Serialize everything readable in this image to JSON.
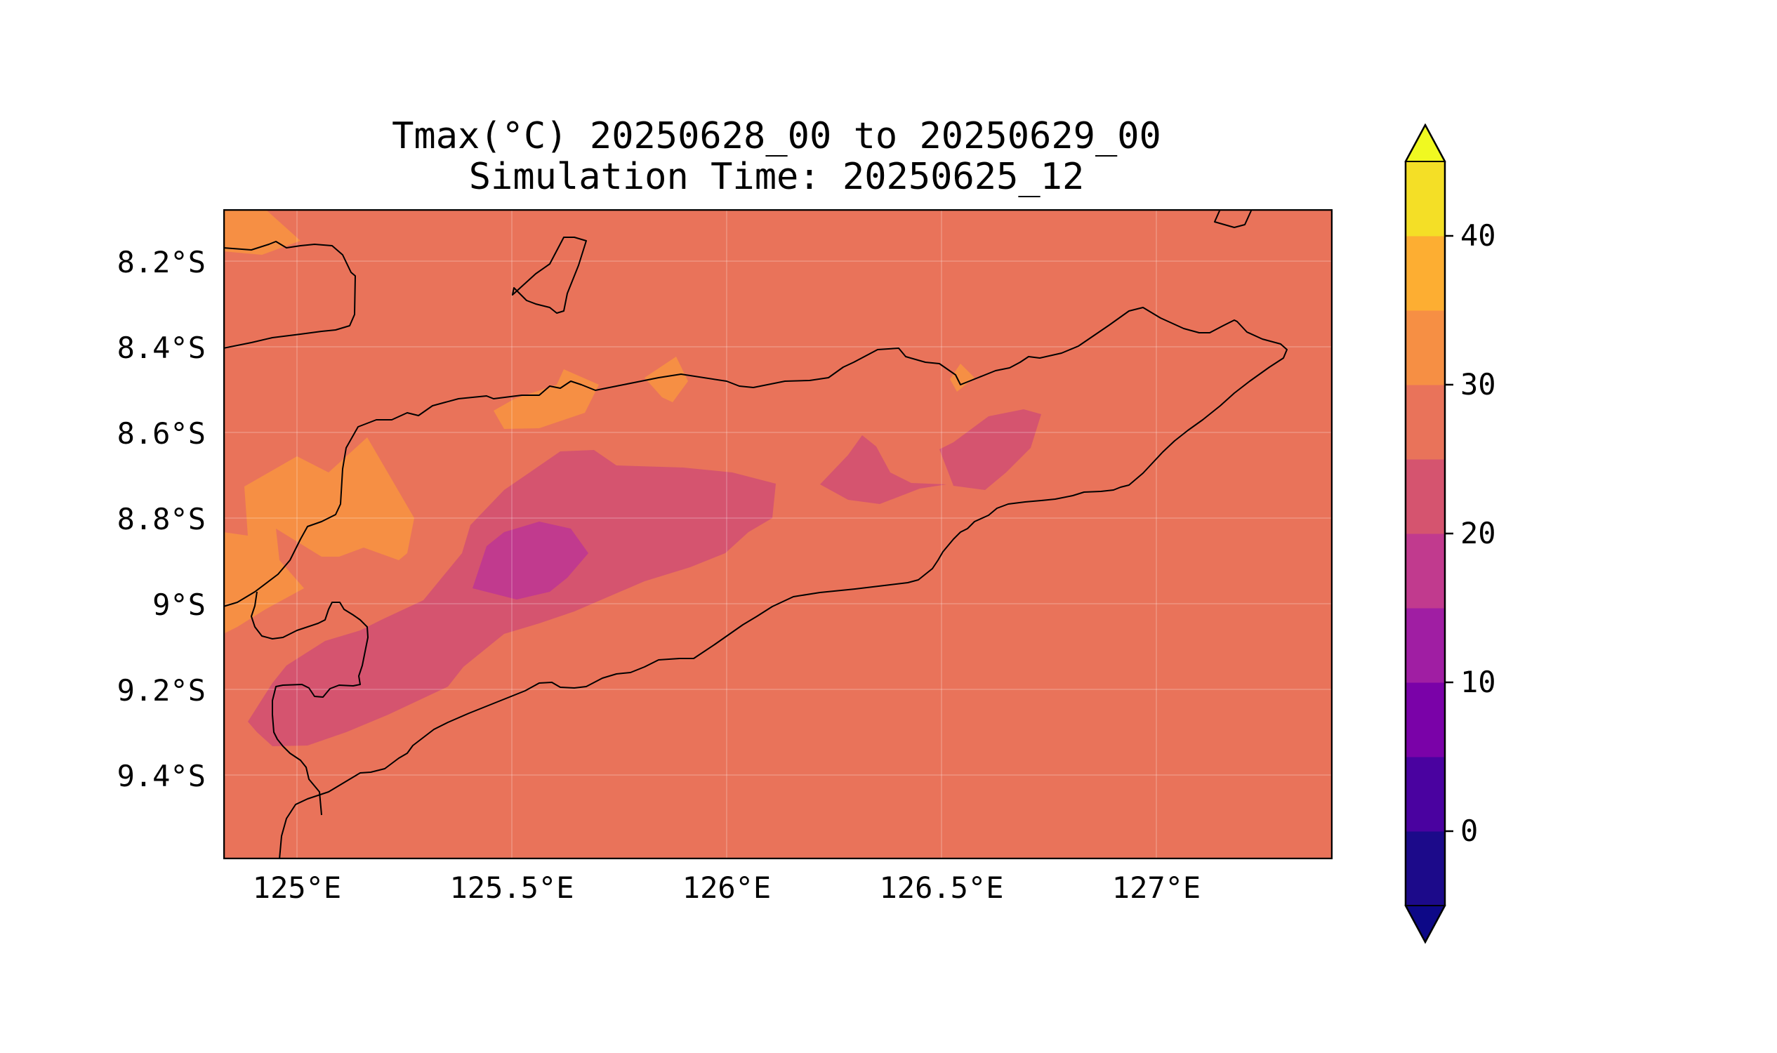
{
  "title": {
    "line1": "Tmax(°C) 20250628_00 to 20250629_00",
    "line2": "Simulation Time: 20250625_12"
  },
  "map": {
    "lat_ticks": [
      "8.2°S",
      "8.4°S",
      "8.6°S",
      "8.8°S",
      "9°S",
      "9.2°S",
      "9.4°S"
    ],
    "lon_ticks": [
      "125°E",
      "125.5°E",
      "126°E",
      "126.5°E",
      "127°E"
    ],
    "field": "Tmax",
    "units": "°C",
    "background_band": "25-30"
  },
  "colorbar": {
    "ticks": [
      "0",
      "10",
      "20",
      "30",
      "40"
    ],
    "levels": [
      -5,
      0,
      5,
      10,
      15,
      20,
      25,
      30,
      35,
      40,
      45
    ],
    "extend": "both",
    "colors": [
      "#1c0a8a",
      "#4a02a0",
      "#7a02a8",
      "#a01ea3",
      "#c13a8e",
      "#d5546f",
      "#e9735a",
      "#f68f44",
      "#fdae32",
      "#f4df26"
    ],
    "under_color": "#0d0887",
    "over_color": "#f0f921"
  }
}
